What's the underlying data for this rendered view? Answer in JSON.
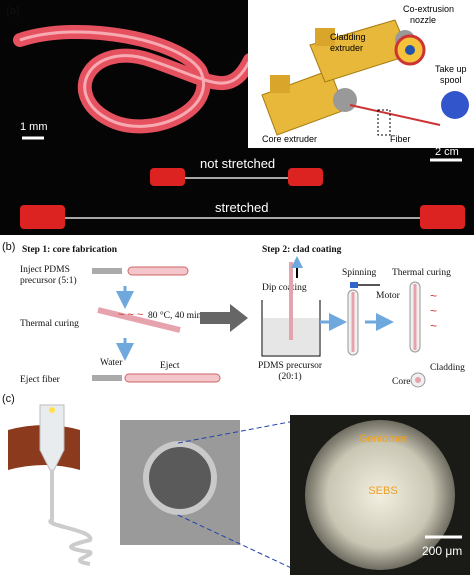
{
  "panel_a": {
    "label": "(a)",
    "scale_knot": "1 mm",
    "inset": {
      "co_extrusion_nozzle": [
        "Co-extrusion",
        "nozzle"
      ],
      "cladding_extruder": [
        "Cladding",
        "extruder"
      ],
      "take_up_spool": [
        "Take up",
        "spool"
      ],
      "core_extruder": "Core extruder",
      "fiber": "Fiber"
    },
    "scale_stretch": "2 cm",
    "not_stretched": "not stretched",
    "stretched": "stretched"
  },
  "panel_b": {
    "label": "(b)",
    "step1": "Step 1: core fabrication",
    "inject": [
      "Inject PDMS",
      "precursor (5:1)"
    ],
    "thermal_curing_1": "Thermal curing",
    "conditions": "80 °C, 40 min",
    "water": "Water",
    "eject": "Eject",
    "eject_fiber": "Eject fiber",
    "step2": "Step 2: clad coating",
    "dip_coating": "Dip coating",
    "pdms_precursor": [
      "PDMS precursor",
      "(20:1)"
    ],
    "spinning": "Spinning",
    "motor": "Motor",
    "thermal_curing_2": "Thermal curing",
    "cladding": "Cladding",
    "core": "Core"
  },
  "panel_c": {
    "label": "(c)",
    "geniomer": "Geniomer",
    "sebs": "SEBS",
    "scale": "200 μm"
  }
}
